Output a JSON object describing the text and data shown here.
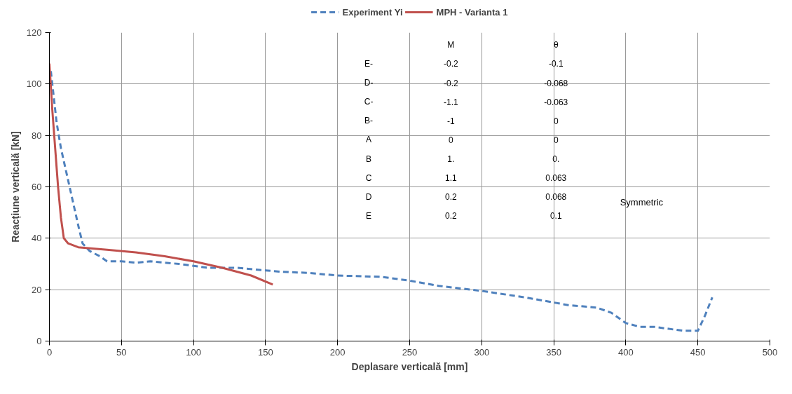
{
  "chart_data": {
    "type": "line",
    "xlabel": "Deplasare verticală [mm]",
    "ylabel": "Reacțiune verticală [kN]",
    "xlim": [
      0,
      500
    ],
    "ylim": [
      0,
      120
    ],
    "xticks": [
      0,
      50,
      100,
      150,
      200,
      250,
      300,
      350,
      400,
      450,
      500
    ],
    "yticks": [
      0,
      20,
      40,
      60,
      80,
      100,
      120
    ],
    "grid": true,
    "legend": "top",
    "marker": "none",
    "series": [
      {
        "name": "Experiment Yi",
        "color": "#4f81bd",
        "line_style": "dashed",
        "x": [
          1,
          3,
          5,
          8,
          12,
          16,
          20,
          23,
          28,
          35,
          40,
          50,
          60,
          70,
          90,
          110,
          130,
          150,
          160,
          180,
          200,
          230,
          250,
          270,
          300,
          330,
          350,
          360,
          380,
          390,
          400,
          410,
          420,
          440,
          450,
          455,
          460
        ],
        "values": [
          105,
          95,
          85,
          75,
          65,
          55,
          45,
          38,
          35,
          33,
          31,
          31,
          30.5,
          31,
          30,
          28.5,
          28.5,
          27.5,
          27,
          26.5,
          25.5,
          25,
          23.5,
          21.5,
          19.5,
          17,
          15,
          14,
          13,
          11,
          7,
          5.5,
          5.5,
          4,
          4,
          10,
          17
        ]
      },
      {
        "name": "MPH - Varianta 1",
        "color": "#c0504d",
        "line_style": "solid",
        "x": [
          0,
          2,
          4,
          6,
          8,
          10,
          13,
          20,
          40,
          60,
          80,
          100,
          120,
          140,
          155
        ],
        "values": [
          108,
          90,
          75,
          60,
          48,
          40,
          38,
          36.5,
          35.5,
          34.5,
          33,
          31,
          28.5,
          25.5,
          22
        ]
      }
    ],
    "annotations": [
      "M",
      "θ",
      "E-",
      "-0.2",
      "-0.1",
      "D-",
      "-0.2",
      "-0.068",
      "C-",
      "-1.1",
      "-0.063",
      "B-",
      "-1",
      "0",
      "A",
      "0",
      "0",
      "B",
      "1.",
      "0.",
      "C",
      "1.1",
      "0.063",
      "D",
      "0.2",
      "0.068",
      "E",
      "0.2",
      "0.1",
      "Symmetric"
    ]
  }
}
